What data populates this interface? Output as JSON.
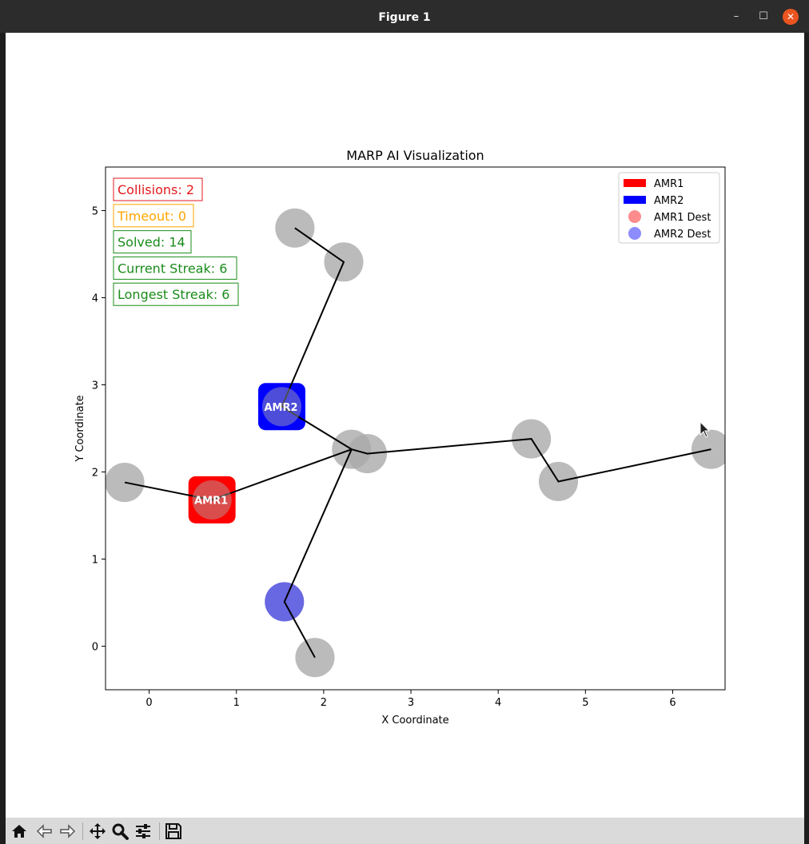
{
  "window": {
    "title": "Figure 1",
    "minimize_glyph": "–",
    "maximize_glyph": "☐",
    "close_glyph": "✕"
  },
  "toolbar": {
    "tools": [
      {
        "name": "home-icon"
      },
      {
        "name": "back-icon"
      },
      {
        "name": "forward-icon"
      },
      {
        "name": "pan-icon"
      },
      {
        "name": "zoom-icon"
      },
      {
        "name": "configure-subplots-icon"
      },
      {
        "name": "save-icon"
      }
    ]
  },
  "chart_data": {
    "type": "scatter",
    "title": "MARP AI Visualization",
    "xlabel": "X Coordinate",
    "ylabel": "Y Coordinate",
    "xlim": [
      -0.5,
      6.6
    ],
    "ylim": [
      -0.5,
      5.5
    ],
    "xticks": [
      0,
      1,
      2,
      3,
      4,
      5,
      6
    ],
    "yticks": [
      0,
      1,
      2,
      3,
      4,
      5
    ],
    "grid": false,
    "legend_position": "top-right",
    "legend": [
      {
        "label": "AMR1",
        "kind": "patch",
        "color": "#ff0000"
      },
      {
        "label": "AMR2",
        "kind": "patch",
        "color": "#0000ff"
      },
      {
        "label": "AMR1 Dest",
        "kind": "circle",
        "color": "#ff7f7f"
      },
      {
        "label": "AMR2 Dest",
        "kind": "circle",
        "color": "#7f7fff"
      }
    ],
    "stats": [
      {
        "text": "Collisions: 2",
        "color": "#e41a1c"
      },
      {
        "text": "Timeout: 0",
        "color": "#ffa500"
      },
      {
        "text": "Solved: 14",
        "color": "#1a8c1a"
      },
      {
        "text": "Current Streak: 6",
        "color": "#1a8c1a"
      },
      {
        "text": "Longest Streak: 6",
        "color": "#1a8c1a"
      }
    ],
    "nodes": [
      {
        "x": -0.28,
        "y": 1.88,
        "color": "#aaaaaa"
      },
      {
        "x": 0.72,
        "y": 1.68,
        "color": "#aaaaaa"
      },
      {
        "x": 1.52,
        "y": 2.75,
        "color": "#aaaaaa"
      },
      {
        "x": 1.67,
        "y": 4.8,
        "color": "#aaaaaa"
      },
      {
        "x": 2.23,
        "y": 4.41,
        "color": "#aaaaaa"
      },
      {
        "x": 2.32,
        "y": 2.26,
        "color": "#aaaaaa"
      },
      {
        "x": 2.5,
        "y": 2.21,
        "color": "#aaaaaa"
      },
      {
        "x": 4.38,
        "y": 2.38,
        "color": "#aaaaaa"
      },
      {
        "x": 4.69,
        "y": 1.89,
        "color": "#aaaaaa"
      },
      {
        "x": 6.44,
        "y": 2.26,
        "color": "#aaaaaa"
      },
      {
        "x": 1.9,
        "y": -0.13,
        "color": "#aaaaaa"
      },
      {
        "x": 1.55,
        "y": 0.51,
        "color": "#4d4ddd"
      }
    ],
    "edges": [
      [
        [
          -0.28,
          1.88
        ],
        [
          0.72,
          1.68
        ],
        [
          2.32,
          2.26
        ]
      ],
      [
        [
          1.67,
          4.8
        ],
        [
          2.23,
          4.41
        ],
        [
          1.52,
          2.75
        ],
        [
          2.32,
          2.26
        ]
      ],
      [
        [
          2.32,
          2.26
        ],
        [
          2.5,
          2.21
        ],
        [
          4.38,
          2.38
        ],
        [
          4.69,
          1.89
        ],
        [
          6.44,
          2.26
        ]
      ],
      [
        [
          2.32,
          2.26
        ],
        [
          1.55,
          0.51
        ],
        [
          1.9,
          -0.13
        ]
      ]
    ],
    "robots": [
      {
        "label": "AMR1",
        "x": 0.72,
        "y": 1.68,
        "color": "#ff0000"
      },
      {
        "label": "AMR2",
        "x": 1.52,
        "y": 2.75,
        "color": "#0000ff"
      }
    ]
  }
}
